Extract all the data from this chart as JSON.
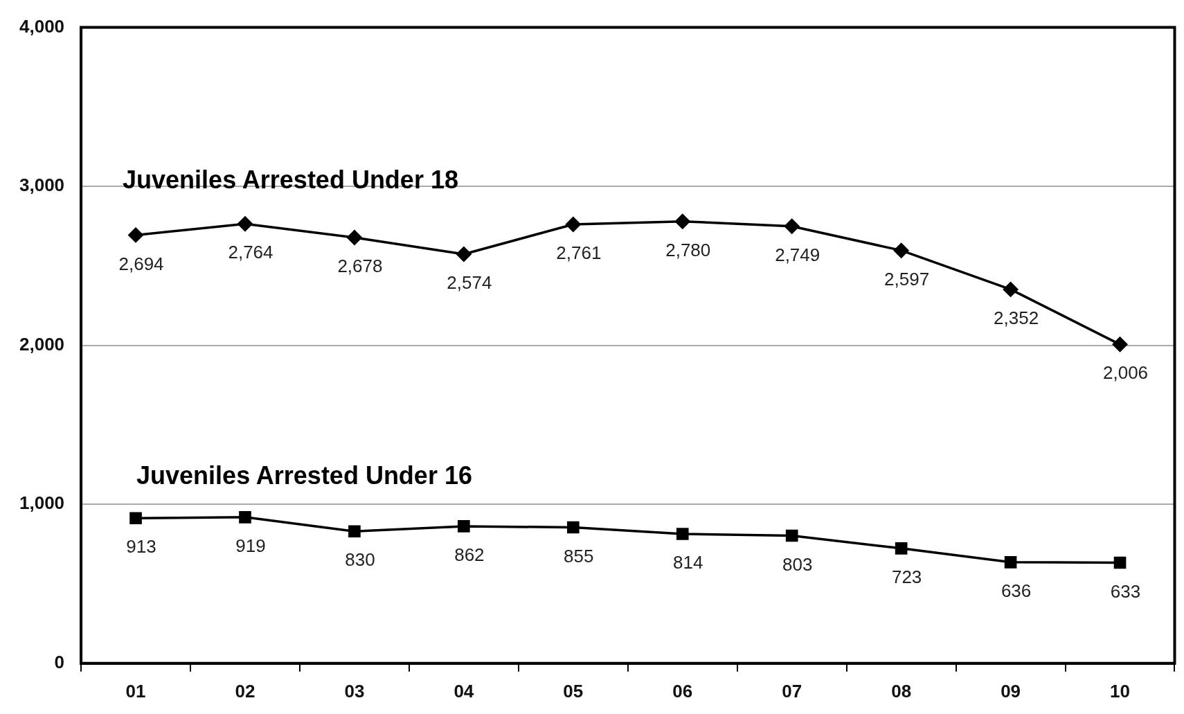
{
  "chart_data": {
    "type": "line",
    "categories": [
      "01",
      "02",
      "03",
      "04",
      "05",
      "06",
      "07",
      "08",
      "09",
      "10"
    ],
    "series": [
      {
        "name": "Juveniles Arrested Under 18",
        "color": "#000000",
        "marker": "diamond",
        "values": [
          2694,
          2764,
          2678,
          2574,
          2761,
          2780,
          2749,
          2597,
          2352,
          2006
        ],
        "value_labels": [
          "2,694",
          "2,764",
          "2,678",
          "2,574",
          "2,761",
          "2,780",
          "2,749",
          "2,597",
          "2,352",
          "2,006"
        ]
      },
      {
        "name": "Juveniles Arrested Under 16",
        "color": "#000000",
        "marker": "square",
        "values": [
          913,
          919,
          830,
          862,
          855,
          814,
          803,
          723,
          636,
          633
        ],
        "value_labels": [
          "913",
          "919",
          "830",
          "862",
          "855",
          "814",
          "803",
          "723",
          "636",
          "633"
        ]
      }
    ],
    "ylim": [
      0,
      4000
    ],
    "yticks": [
      {
        "value": 0,
        "label": "0"
      },
      {
        "value": 1000,
        "label": "1,000"
      },
      {
        "value": 2000,
        "label": "2,000"
      },
      {
        "value": 3000,
        "label": "3,000"
      },
      {
        "value": 4000,
        "label": "4,000"
      }
    ],
    "grid": "y",
    "legend": false,
    "line_style": "solid"
  }
}
